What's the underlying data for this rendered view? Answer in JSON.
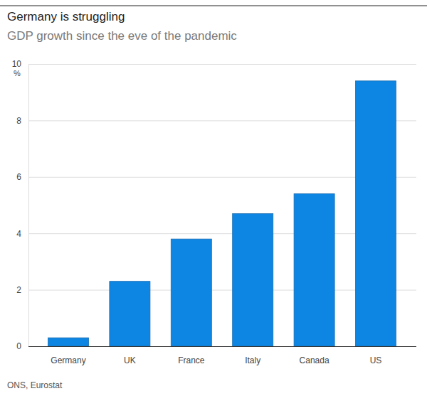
{
  "chart_data": {
    "type": "bar",
    "title": "Germany is struggling",
    "subtitle": "GDP growth since the eve of the pandemic",
    "ylabel": "%",
    "source": "ONS, Eurostat",
    "categories": [
      "Germany",
      "UK",
      "France",
      "Italy",
      "Canada",
      "US"
    ],
    "values": [
      0.3,
      2.3,
      3.8,
      4.7,
      5.4,
      9.4
    ],
    "color": "#0d86e3",
    "ylim": [
      0,
      10
    ],
    "yticks": [
      0,
      2,
      4,
      6,
      8,
      10
    ],
    "grid": true
  }
}
